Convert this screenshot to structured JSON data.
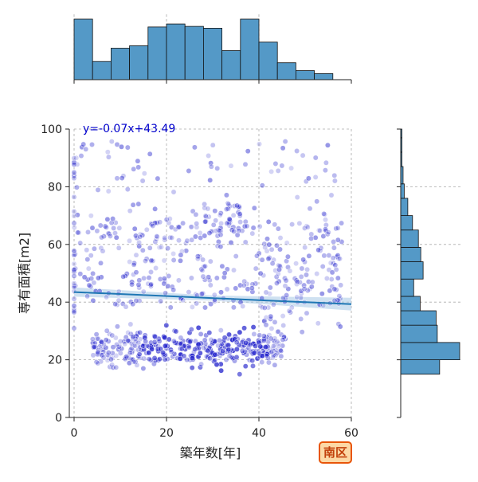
{
  "chart_data": {
    "type": "scatter",
    "xlabel": "築年数[年]",
    "ylabel": "専有面積[m2]",
    "xlim": [
      0,
      60
    ],
    "ylim": [
      0,
      100
    ],
    "x_ticks": [
      "0",
      "20",
      "40",
      "60"
    ],
    "y_ticks": [
      "0",
      "20",
      "40",
      "60",
      "80",
      "100"
    ],
    "grid": true,
    "regression": {
      "equation": "y=-0.07x+43.49",
      "slope": -0.07,
      "intercept": 43.49,
      "color": "#1f77b4",
      "ci_color": "#a8c8e6"
    },
    "point_color": "#2222cc",
    "label_color": "#0000cc",
    "hist_color": "#5499c7",
    "marginal_x_histogram": {
      "bin_edges": [
        0,
        4,
        8,
        12,
        16,
        20,
        24,
        28,
        32,
        36,
        40,
        44,
        48,
        52,
        56,
        58
      ],
      "relative_heights": [
        1.0,
        0.3,
        0.52,
        0.56,
        0.87,
        0.92,
        0.88,
        0.85,
        0.48,
        1.0,
        0.62,
        0.28,
        0.15,
        0.1
      ]
    },
    "marginal_y_histogram": {
      "bin_edges": [
        15,
        20,
        26,
        32,
        37,
        42,
        48,
        54,
        59,
        65,
        70,
        76,
        81,
        87,
        92,
        97,
        100
      ],
      "relative_heights": [
        0.66,
        1.0,
        0.62,
        0.6,
        0.33,
        0.22,
        0.38,
        0.34,
        0.3,
        0.2,
        0.12,
        0.06,
        0.04,
        0.02,
        0.02,
        0.02
      ]
    }
  },
  "ward_label": "南区"
}
